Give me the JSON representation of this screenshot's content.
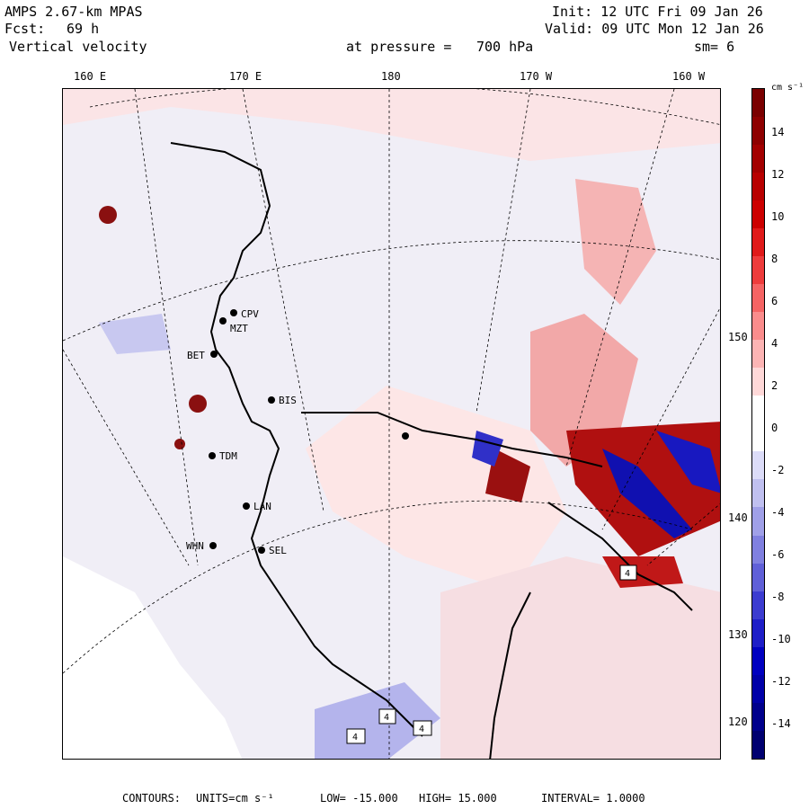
{
  "header": {
    "model": "AMPS 2.67-km MPAS",
    "fcst_label": "Fcst:",
    "fcst_value": "69 h",
    "field": "Vertical velocity",
    "init": "Init: 12 UTC Fri 09 Jan 26",
    "valid": "Valid: 09 UTC Mon 12 Jan 26",
    "pressure_label": "at pressure =",
    "pressure_value": "700 hPa",
    "smooth": "sm= 6"
  },
  "longitude_labels": [
    "160 E",
    "170 E",
    "180",
    "170 W",
    "160 W"
  ],
  "latitude_labels": [
    "150 W",
    "140 W",
    "130 W",
    "120 W"
  ],
  "stations": [
    "CPV",
    "MZT",
    "BET",
    "BIS",
    "TDM",
    "LAN",
    "WHN",
    "SEL"
  ],
  "boxed_labels": [
    "4",
    "4",
    "4",
    "4"
  ],
  "colorbar": {
    "units": "cm s⁻¹",
    "ticks": [
      "14",
      "12",
      "10",
      "8",
      "6",
      "4",
      "2",
      "0",
      "-2",
      "-4",
      "-6",
      "-8",
      "-10",
      "-12",
      "-14"
    ],
    "colors": [
      "#7a0000",
      "#8e0000",
      "#a30000",
      "#b80000",
      "#cc0000",
      "#e01a1a",
      "#ee3c3c",
      "#f56464",
      "#fa8c8c",
      "#fcb4b4",
      "#fed8d8",
      "#ffffff",
      "#ffffff",
      "#dcdcf8",
      "#c0c0f0",
      "#a0a0e8",
      "#8080e0",
      "#6060d8",
      "#3c3cd0",
      "#1e1ec8",
      "#0000c0",
      "#0000a8",
      "#00008c",
      "#000070"
    ]
  },
  "footer": {
    "contours": "CONTOURS:",
    "units": "UNITS=cm s⁻¹",
    "low": "LOW= -15.000",
    "high": "HIGH= 15.000",
    "interval": "INTERVAL= 1.0000"
  }
}
